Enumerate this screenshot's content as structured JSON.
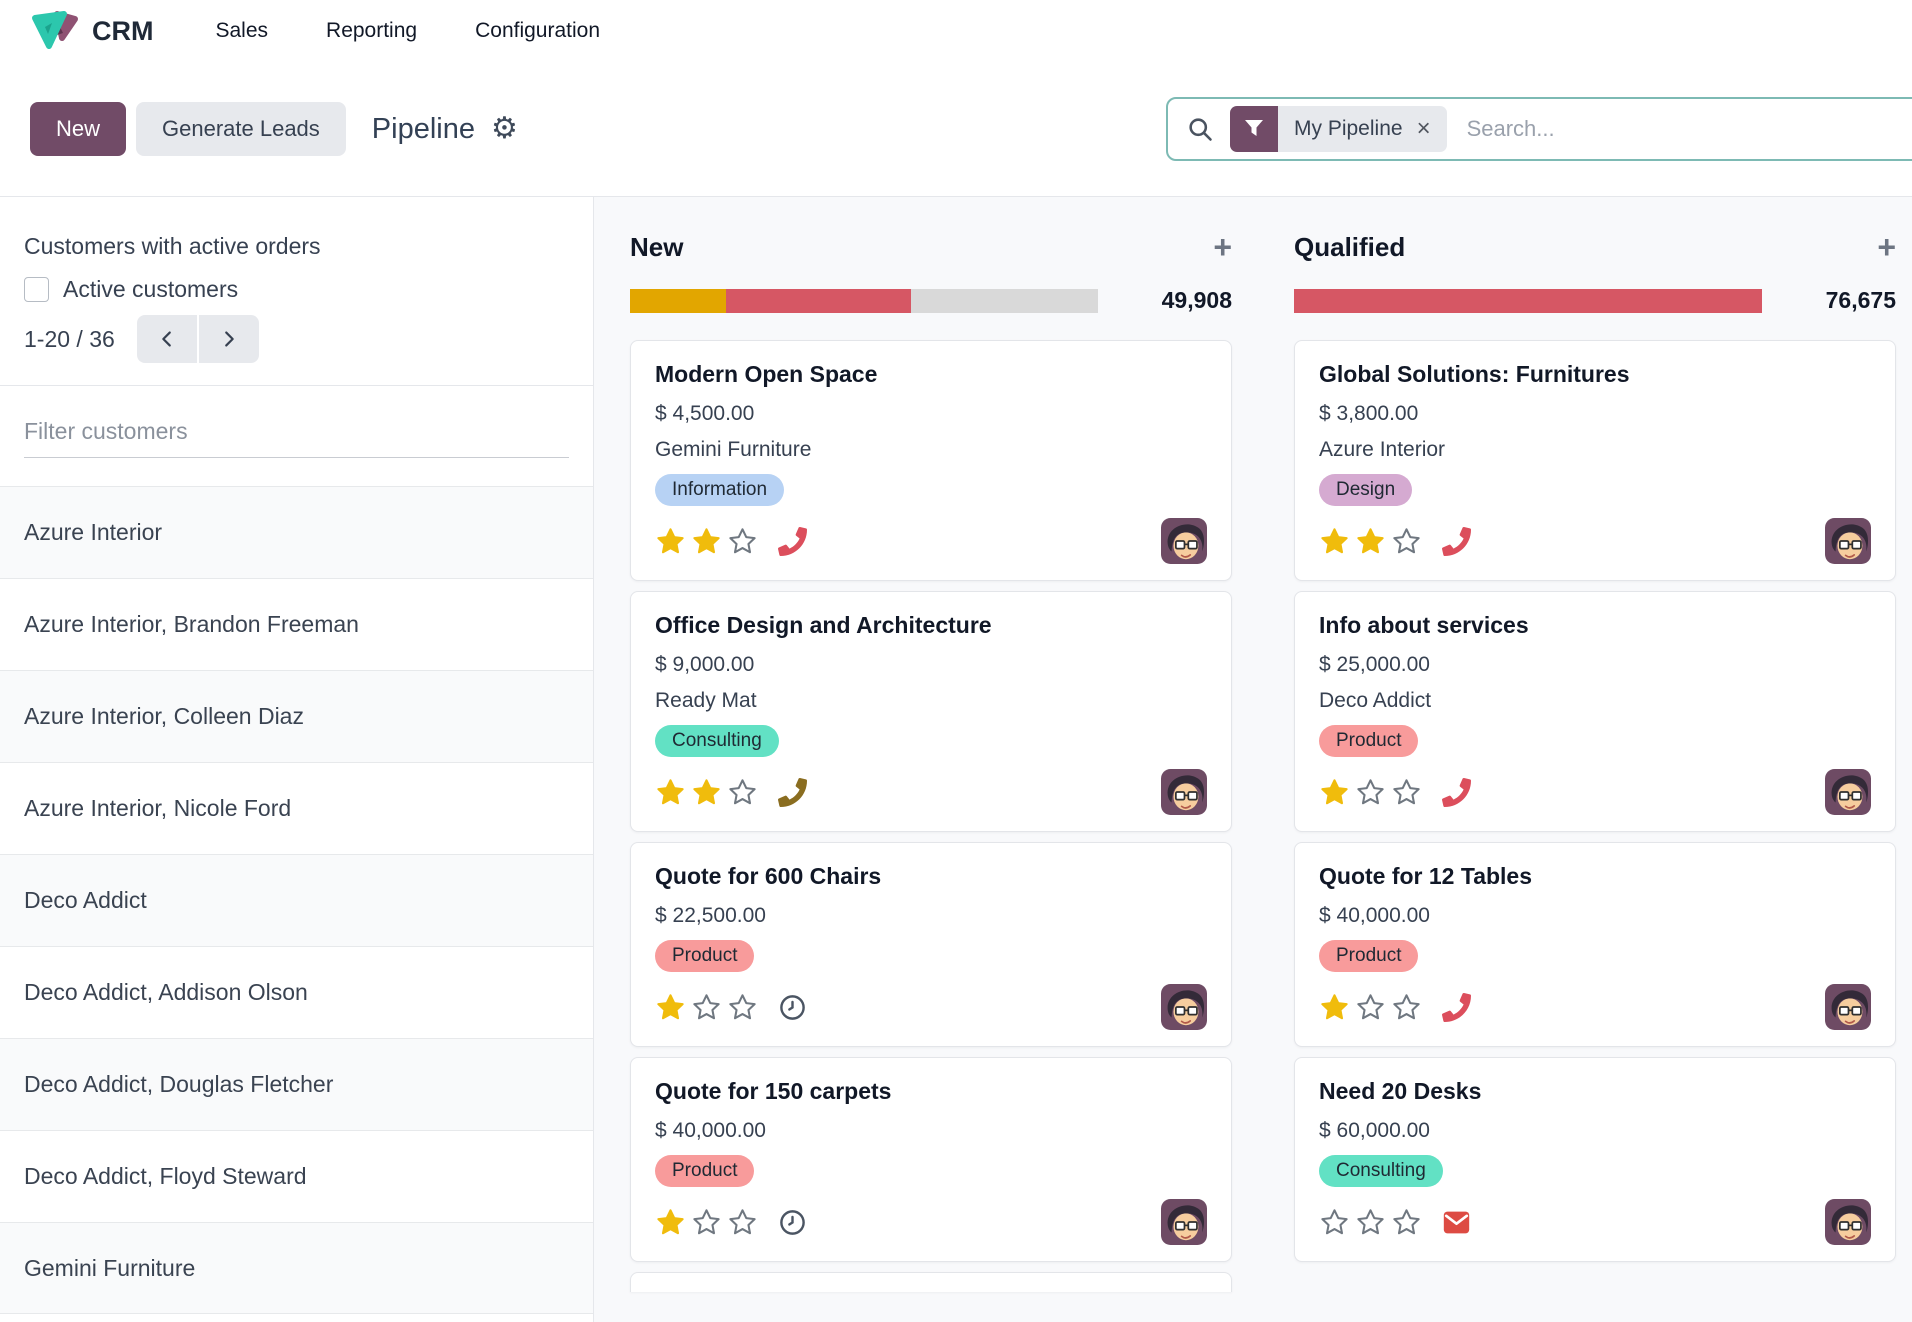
{
  "nav": {
    "app_name": "CRM",
    "items": [
      "Sales",
      "Reporting",
      "Configuration"
    ]
  },
  "control_bar": {
    "new_label": "New",
    "generate_leads_label": "Generate Leads",
    "title": "Pipeline"
  },
  "search": {
    "facet_label": "My Pipeline",
    "placeholder": "Search..."
  },
  "icons": {
    "add_glyph": "+",
    "close_glyph": "×",
    "gear_glyph": "⚙︎"
  },
  "sidebar": {
    "heading": "Customers with active orders",
    "checkbox_label": "Active customers",
    "checkbox_checked": false,
    "pager_range": "1-20 / 36",
    "filter_placeholder": "Filter customers",
    "customers": [
      "Azure Interior",
      "Azure Interior, Brandon Freeman",
      "Azure Interior, Colleen Diaz",
      "Azure Interior, Nicole Ford",
      "Deco Addict",
      "Deco Addict, Addison Olson",
      "Deco Addict, Douglas Fletcher",
      "Deco Addict, Floyd Steward",
      "Gemini Furniture"
    ]
  },
  "board": {
    "columns": [
      {
        "name": "New",
        "total": "49,908",
        "progress": [
          {
            "color": "#e2a600",
            "pct": 20.5
          },
          {
            "color": "#d65764",
            "pct": 39.5
          },
          {
            "color": "#d9d9d9",
            "pct": 40
          }
        ],
        "partial_card": true,
        "cards": [
          {
            "title": "Modern Open Space",
            "amount": "$ 4,500.00",
            "company": "Gemini Furniture",
            "tag": "Information",
            "tag_color": "#b7d2f4",
            "stars": 2,
            "activity": "phone",
            "activity_color": "#dc4e5c"
          },
          {
            "title": "Office Design and Architecture",
            "amount": "$ 9,000.00",
            "company": "Ready Mat",
            "tag": "Consulting",
            "tag_color": "#62e1c4",
            "stars": 2,
            "activity": "phone",
            "activity_color": "#8a6d20"
          },
          {
            "title": "Quote for 600 Chairs",
            "amount": "$ 22,500.00",
            "company": "",
            "tag": "Product",
            "tag_color": "#f89b9b",
            "stars": 1,
            "activity": "clock",
            "activity_color": "#4b5563"
          },
          {
            "title": "Quote for 150 carpets",
            "amount": "$ 40,000.00",
            "company": "",
            "tag": "Product",
            "tag_color": "#f89b9b",
            "stars": 1,
            "activity": "clock",
            "activity_color": "#4b5563"
          }
        ]
      },
      {
        "name": "Qualified",
        "total": "76,675",
        "progress": [
          {
            "color": "#d65764",
            "pct": 100
          }
        ],
        "partial_card": false,
        "cards": [
          {
            "title": "Global Solutions: Furnitures",
            "amount": "$ 3,800.00",
            "company": "Azure Interior",
            "tag": "Design",
            "tag_color": "#d5aad1",
            "stars": 2,
            "activity": "phone",
            "activity_color": "#dc4e5c"
          },
          {
            "title": "Info about services",
            "amount": "$ 25,000.00",
            "company": "Deco Addict",
            "tag": "Product",
            "tag_color": "#f89b9b",
            "stars": 1,
            "activity": "phone",
            "activity_color": "#dc4e5c"
          },
          {
            "title": "Quote for 12 Tables",
            "amount": "$ 40,000.00",
            "company": "",
            "tag": "Product",
            "tag_color": "#f89b9b",
            "stars": 1,
            "activity": "phone",
            "activity_color": "#dc4e5c"
          },
          {
            "title": "Need 20 Desks",
            "amount": "$ 60,000.00",
            "company": "",
            "tag": "Consulting",
            "tag_color": "#62e1c4",
            "stars": 0,
            "activity": "envelope",
            "activity_color": "#dd4b43"
          }
        ]
      }
    ]
  }
}
